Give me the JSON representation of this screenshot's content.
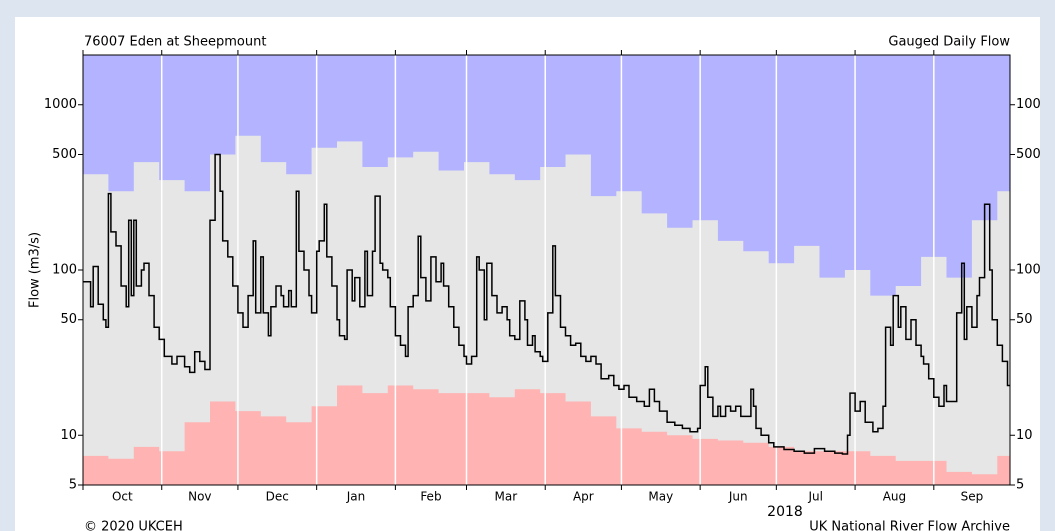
{
  "chart_data": {
    "type": "line",
    "step": true,
    "title": "76007 Eden at Sheepmount",
    "subtitle": "Gauged Daily Flow",
    "ylabel": "Flow (m3/s)",
    "xlabel": "2018",
    "footer_left": "© 2020 UKCEH",
    "footer_right": "UK National River Flow Archive",
    "log_y": true,
    "grid": "x",
    "ylim": [
      5,
      2000
    ],
    "yticks": [
      5,
      10,
      50,
      100,
      500,
      1000
    ],
    "xlim": [
      0,
      365
    ],
    "xticks": [
      {
        "value": 0,
        "label": "Oct"
      },
      {
        "value": 31,
        "label": "Nov"
      },
      {
        "value": 61,
        "label": "Dec"
      },
      {
        "value": 92,
        "label": "Jan"
      },
      {
        "value": 123,
        "label": "Feb"
      },
      {
        "value": 151,
        "label": "Mar"
      },
      {
        "value": 182,
        "label": "Apr"
      },
      {
        "value": 212,
        "label": "May"
      },
      {
        "value": 243,
        "label": "Jun"
      },
      {
        "value": 273,
        "label": "Jul"
      },
      {
        "value": 304,
        "label": "Aug"
      },
      {
        "value": 335,
        "label": "Sep"
      }
    ],
    "background": "#e6e6e6",
    "series": [
      {
        "color": "#b3b3ff",
        "fill": "above",
        "x": [
          0,
          10,
          20,
          30,
          40,
          50,
          60,
          70,
          80,
          90,
          100,
          110,
          120,
          130,
          140,
          150,
          160,
          170,
          180,
          190,
          200,
          210,
          220,
          230,
          240,
          250,
          260,
          270,
          280,
          290,
          300,
          310,
          320,
          330,
          340,
          350,
          360
        ],
        "values": [
          380,
          300,
          450,
          350,
          300,
          500,
          650,
          450,
          380,
          550,
          600,
          420,
          480,
          520,
          400,
          450,
          380,
          350,
          420,
          500,
          280,
          300,
          220,
          180,
          200,
          150,
          130,
          110,
          140,
          90,
          100,
          70,
          80,
          120,
          90,
          200,
          300
        ]
      },
      {
        "color": "#ffb3b3",
        "fill": "below",
        "x": [
          0,
          10,
          20,
          30,
          40,
          50,
          60,
          70,
          80,
          90,
          100,
          110,
          120,
          130,
          140,
          150,
          160,
          170,
          180,
          190,
          200,
          210,
          220,
          230,
          240,
          250,
          260,
          270,
          280,
          290,
          300,
          310,
          320,
          330,
          340,
          350,
          360
        ],
        "values": [
          7.5,
          7.2,
          8.5,
          8,
          12,
          16,
          14,
          13,
          12,
          15,
          20,
          18,
          20,
          19,
          18,
          18,
          17,
          19,
          18,
          16,
          13,
          11,
          10.5,
          10,
          9.5,
          9.3,
          9,
          8.5,
          8,
          8,
          8,
          7.5,
          7,
          7,
          6,
          5.8,
          7.5
        ]
      },
      {
        "color": "#000000",
        "fill": null,
        "x": [
          0,
          3,
          4,
          6,
          8,
          9,
          10,
          11,
          13,
          15,
          17,
          18,
          19,
          20,
          21,
          23,
          24,
          26,
          28,
          30,
          32,
          35,
          37,
          40,
          42,
          44,
          46,
          48,
          50,
          52,
          54,
          55,
          57,
          59,
          61,
          63,
          65,
          67,
          68,
          70,
          71,
          73,
          74,
          76,
          78,
          79,
          81,
          82,
          84,
          85,
          87,
          89,
          90,
          92,
          93,
          95,
          96,
          98,
          100,
          101,
          103,
          104,
          106,
          107,
          109,
          111,
          112,
          114,
          115,
          117,
          118,
          120,
          121,
          123,
          125,
          127,
          128,
          130,
          132,
          133,
          135,
          137,
          139,
          141,
          142,
          144,
          146,
          148,
          150,
          151,
          153,
          155,
          156,
          158,
          159,
          161,
          163,
          165,
          167,
          168,
          170,
          172,
          174,
          175,
          177,
          178,
          180,
          181,
          183,
          185,
          186,
          188,
          190,
          192,
          194,
          196,
          198,
          200,
          202,
          204,
          207,
          209,
          211,
          213,
          215,
          218,
          221,
          223,
          225,
          227,
          230,
          233,
          236,
          239,
          242,
          243,
          245,
          246,
          248,
          250,
          251,
          253,
          255,
          257,
          259,
          261,
          263,
          264,
          265,
          267,
          270,
          272,
          276,
          280,
          284,
          288,
          292,
          296,
          299,
          301,
          302,
          304,
          306,
          308,
          311,
          313,
          315,
          316,
          318,
          319,
          321,
          322,
          324,
          326,
          328,
          330,
          331,
          333,
          335,
          337,
          339,
          340,
          342,
          344,
          346,
          347,
          348,
          350,
          352,
          353,
          355,
          357,
          358,
          360,
          362,
          364
        ],
        "values": [
          85,
          60,
          105,
          62,
          50,
          45,
          290,
          170,
          140,
          80,
          60,
          200,
          70,
          200,
          80,
          100,
          110,
          70,
          45,
          38,
          30,
          27,
          30,
          26,
          24,
          32,
          28,
          25,
          200,
          500,
          300,
          150,
          120,
          80,
          55,
          45,
          70,
          150,
          55,
          120,
          55,
          40,
          60,
          80,
          70,
          60,
          75,
          60,
          300,
          130,
          100,
          70,
          55,
          130,
          150,
          250,
          120,
          80,
          50,
          40,
          38,
          100,
          65,
          90,
          60,
          130,
          70,
          130,
          280,
          110,
          100,
          90,
          60,
          40,
          35,
          30,
          60,
          70,
          160,
          90,
          65,
          120,
          85,
          110,
          80,
          60,
          45,
          35,
          30,
          27,
          30,
          120,
          100,
          50,
          110,
          70,
          55,
          60,
          50,
          40,
          38,
          65,
          50,
          35,
          40,
          32,
          30,
          28,
          55,
          140,
          70,
          45,
          40,
          35,
          36,
          30,
          28,
          30,
          27,
          22,
          23,
          20,
          19,
          20,
          17,
          16,
          15,
          19,
          16,
          14,
          12,
          11.5,
          11,
          10.5,
          11,
          20,
          26,
          17,
          13,
          15,
          13,
          15,
          14,
          15,
          13,
          13,
          19,
          15,
          11,
          10,
          9,
          8.5,
          8.2,
          8,
          7.8,
          8.3,
          8,
          7.8,
          7.7,
          10,
          18,
          14,
          16,
          12,
          10.5,
          11,
          15,
          45,
          35,
          70,
          45,
          60,
          38,
          50,
          35,
          30,
          27,
          22,
          17,
          15,
          20,
          16,
          16,
          55,
          110,
          38,
          60,
          45,
          70,
          90,
          250,
          100,
          50,
          35,
          28,
          20
        ]
      }
    ]
  }
}
